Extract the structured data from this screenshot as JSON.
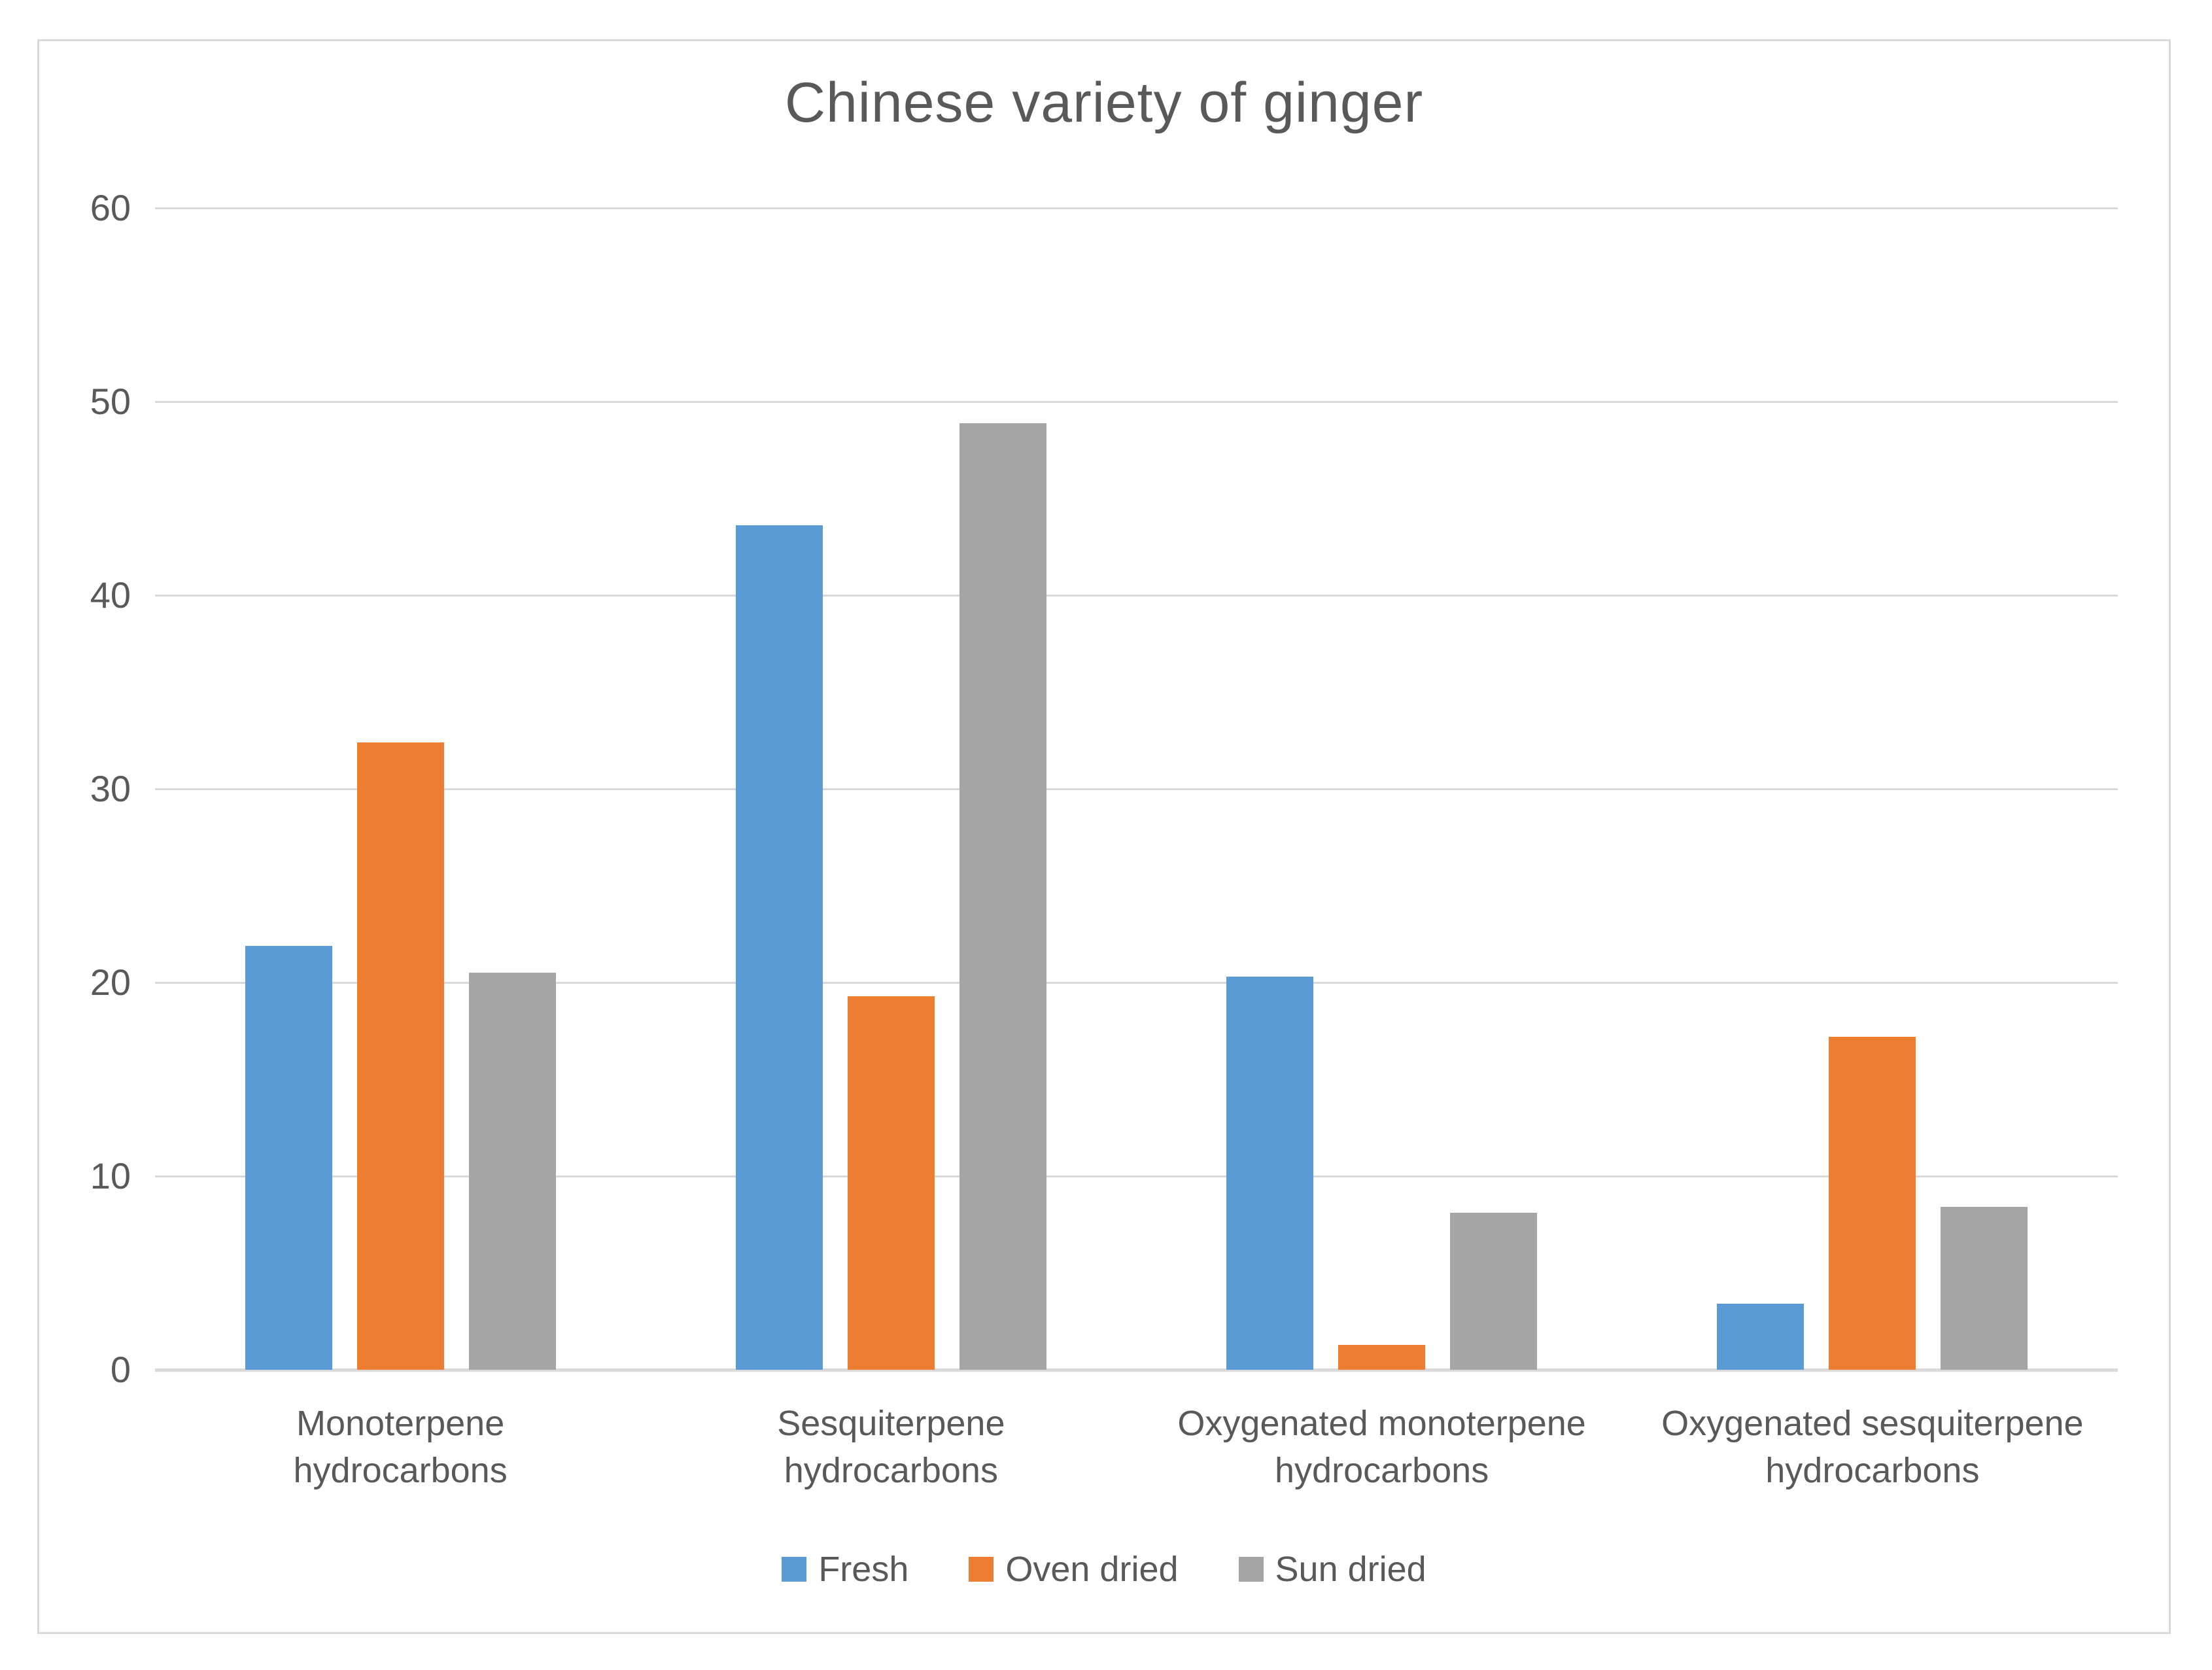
{
  "chart_data": {
    "type": "bar",
    "title": "Chinese variety of ginger",
    "categories": [
      "Monoterpene hydrocarbons",
      "Sesquiterpene hydrocarbons",
      "Oxygenated monoterpene hydrocarbons",
      "Oxygenated sesquiterpene hydrocarbons"
    ],
    "category_lines": [
      [
        "Monoterpene",
        "hydrocarbons"
      ],
      [
        "Sesquiterpene",
        "hydrocarbons"
      ],
      [
        "Oxygenated monoterpene",
        "hydrocarbons"
      ],
      [
        "Oxygenated sesquiterpene",
        "hydrocarbons"
      ]
    ],
    "series": [
      {
        "name": "Fresh",
        "color": "#5B9BD5",
        "values": [
          21.9,
          43.6,
          20.3,
          3.4
        ]
      },
      {
        "name": "Oven dried",
        "color": "#ED7D31",
        "values": [
          32.4,
          19.3,
          1.3,
          17.2
        ]
      },
      {
        "name": "Sun dried",
        "color": "#A5A5A5",
        "values": [
          20.5,
          48.9,
          8.1,
          8.4
        ]
      }
    ],
    "y_ticks": [
      0,
      10,
      20,
      30,
      40,
      50,
      60
    ],
    "ylim": [
      0,
      60
    ],
    "xlabel": "",
    "ylabel": "",
    "grid": true,
    "gridline_color": "#D9D9D9",
    "frame_border_color": "#D9D9D9",
    "text_color": "#595959",
    "legend_position": "bottom"
  }
}
